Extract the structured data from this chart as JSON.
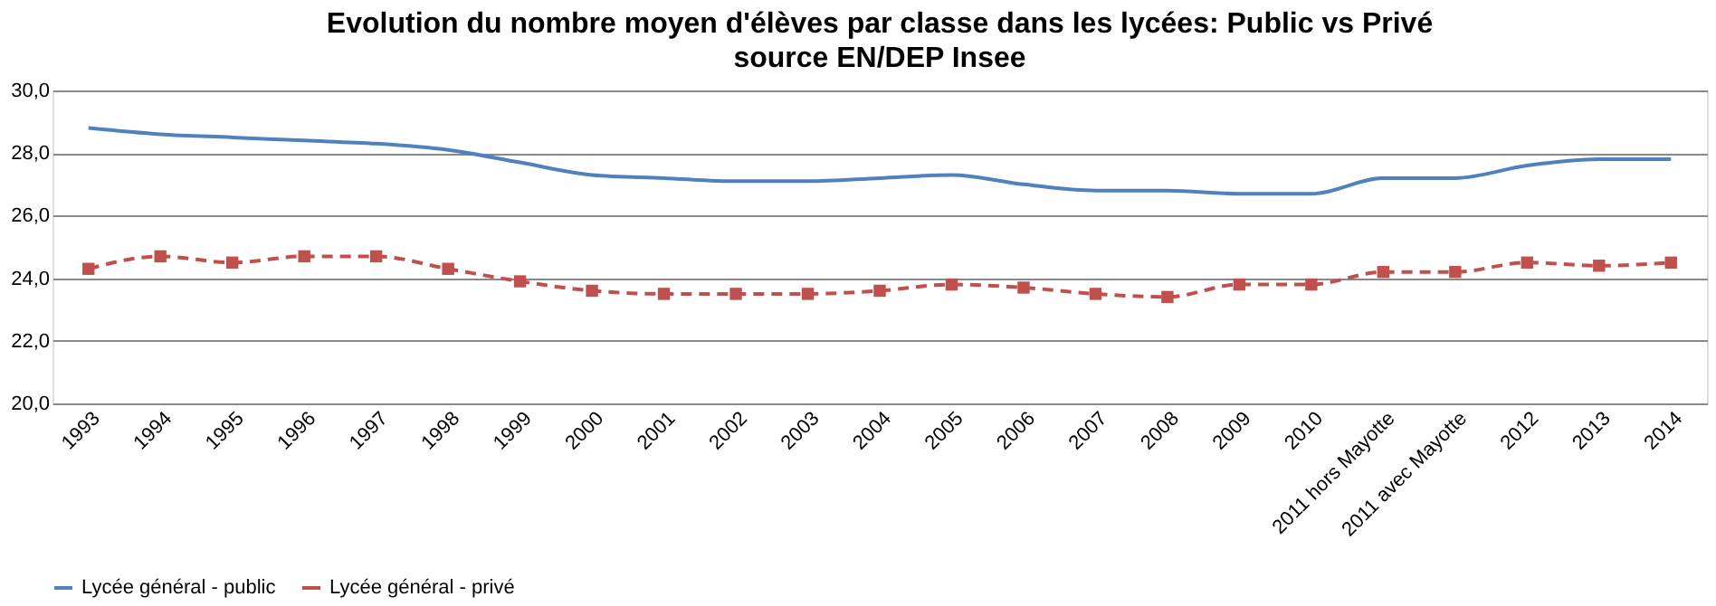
{
  "chart_data": {
    "type": "line",
    "title": "Evolution du nombre moyen d'élèves par classe dans les lycées: Public vs Privé",
    "subtitle": "source EN/DEP Insee",
    "categories": [
      "1993",
      "1994",
      "1995",
      "1996",
      "1997",
      "1998",
      "1999",
      "2000",
      "2001",
      "2002",
      "2003",
      "2004",
      "2005",
      "2006",
      "2007",
      "2008",
      "2009",
      "2010",
      "2011  hors Mayotte",
      "2011  avec Mayotte",
      "2012",
      "2013",
      "2014"
    ],
    "series": [
      {
        "name": "Lycée général - public",
        "color": "#4f81bd",
        "marker": "none",
        "line_style": "solid",
        "values": [
          28.8,
          28.6,
          28.5,
          28.4,
          28.3,
          28.1,
          27.7,
          27.3,
          27.2,
          27.1,
          27.1,
          27.2,
          27.3,
          27.0,
          26.8,
          26.8,
          26.7,
          26.7,
          27.2,
          27.2,
          27.6,
          27.8,
          27.8
        ]
      },
      {
        "name": "Lycée général - privé",
        "color": "#c0504d",
        "marker": "square",
        "line_style": "dashed",
        "values": [
          24.3,
          24.7,
          24.5,
          24.7,
          24.7,
          24.3,
          23.9,
          23.6,
          23.5,
          23.5,
          23.5,
          23.6,
          23.8,
          23.7,
          23.5,
          23.4,
          23.8,
          23.8,
          24.2,
          24.2,
          24.5,
          24.4,
          24.5
        ]
      }
    ],
    "ylim": [
      20,
      30
    ],
    "yticks": [
      {
        "value": 20,
        "label": "20,0"
      },
      {
        "value": 22,
        "label": "22,0"
      },
      {
        "value": 24,
        "label": "24,0"
      },
      {
        "value": 26,
        "label": "26,0"
      },
      {
        "value": 28,
        "label": "28,0"
      },
      {
        "value": 30,
        "label": "30,0"
      }
    ],
    "grid": "y",
    "legend": "bottom"
  }
}
